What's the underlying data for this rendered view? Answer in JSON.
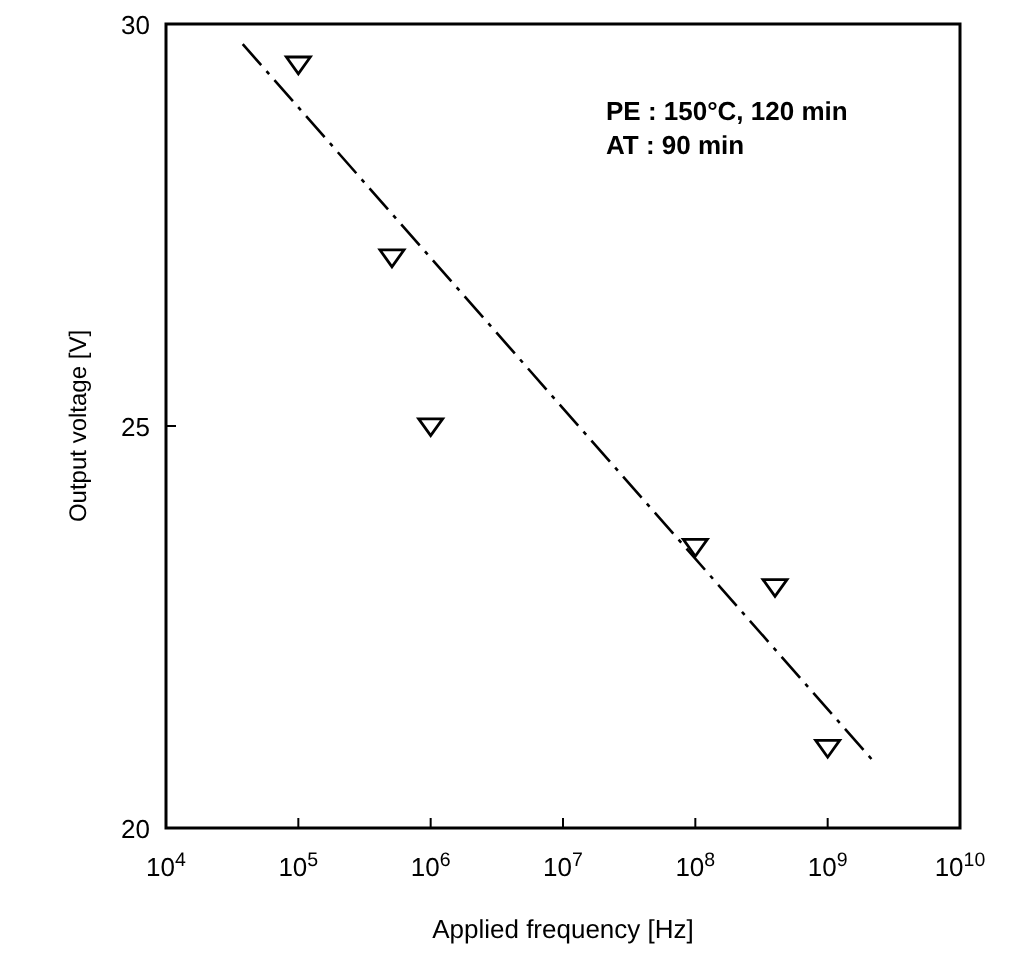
{
  "chart_data": {
    "type": "scatter",
    "xlabel": "Applied frequency [Hz]",
    "ylabel": "Output voltage [V]",
    "log": "x",
    "xlim": [
      10000,
      10000000000
    ],
    "xticks": [
      {
        "value": 10000,
        "label": "10$^{4}$"
      },
      {
        "value": 100000,
        "label": "10$^{5}$"
      },
      {
        "value": 1000000,
        "label": "10$^{6}$"
      },
      {
        "value": 10000000,
        "label": "10$^{7}$"
      },
      {
        "value": 100000000,
        "label": "10$^{8}$"
      },
      {
        "value": 1000000000,
        "label": "10$^{9}$"
      },
      {
        "value": 10000000000,
        "label": "10$^{10}$"
      }
    ],
    "ylim": [
      20,
      30
    ],
    "yticks": [
      20,
      25,
      30
    ],
    "grid": false,
    "annotations": [
      "PE : 150°C, 120 min",
      "AT :  90 min"
    ],
    "series": [
      {
        "color": "#000000",
        "marker": "triangle",
        "x": [
          100000,
          510000,
          1000000,
          100000000,
          400000000,
          1000000000
        ],
        "values": [
          29.5,
          27.1,
          25.0,
          23.5,
          23.0,
          21.0
        ]
      },
      {
        "type": "line",
        "color": "#000000",
        "line_style": "dashed",
        "x": [
          38000,
          2300000000
        ],
        "values": [
          29.75,
          20.8
        ]
      }
    ]
  }
}
